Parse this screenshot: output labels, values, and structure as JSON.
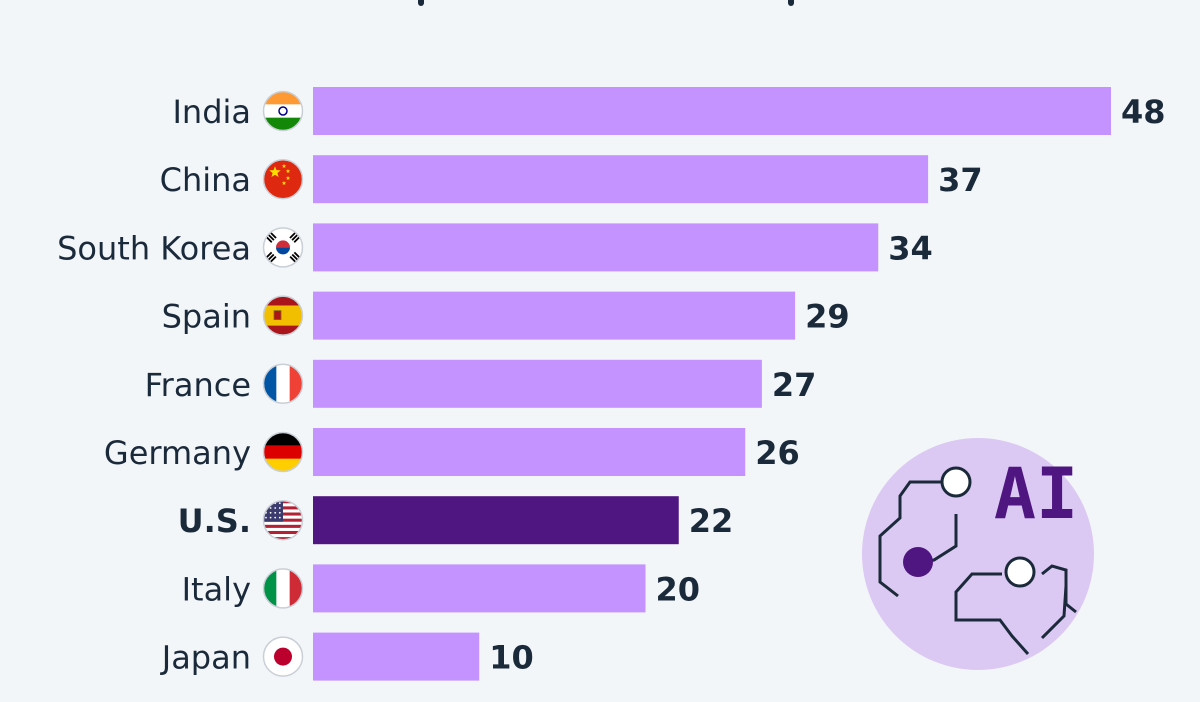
{
  "chart_data": {
    "type": "bar",
    "orientation": "horizontal",
    "categories": [
      "India",
      "China",
      "South Korea",
      "Spain",
      "France",
      "Germany",
      "U.S.",
      "Italy",
      "Japan"
    ],
    "values": [
      48,
      37,
      34,
      29,
      27,
      26,
      22,
      20,
      10
    ],
    "highlight": "U.S.",
    "flags": [
      "india-flag",
      "china-flag",
      "south-korea-flag",
      "spain-flag",
      "france-flag",
      "germany-flag",
      "us-flag",
      "italy-flag",
      "japan-flag"
    ],
    "colors": {
      "bar": "#c493ff",
      "highlight_bar": "#4f1580",
      "text": "#1b2a3b",
      "background": "#f3f6f9"
    },
    "grid": false,
    "legend": "none",
    "xlim": [
      0,
      48
    ]
  },
  "illustration": {
    "icon": "ai-circuit-icon",
    "text": "AI"
  }
}
